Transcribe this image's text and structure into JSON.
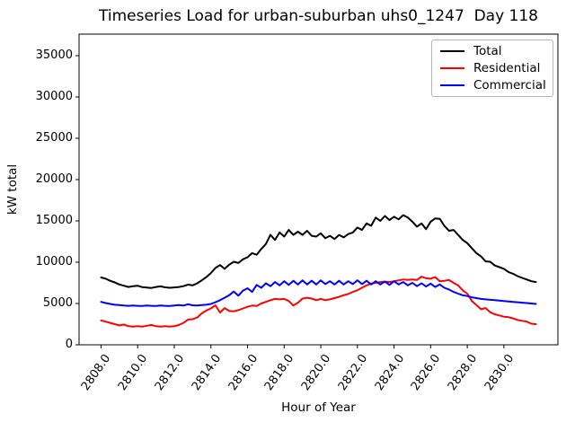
{
  "chart_data": {
    "type": "line",
    "title": "Timeseries Load for urban-suburban uhs0_1247  Day 118",
    "xlabel": "Hour of Year",
    "ylabel": "kW total",
    "grid": false,
    "legend_position": "upper right",
    "xlim": [
      2806.8,
      2832.95
    ],
    "ylim": [
      0,
      37610
    ],
    "xticks": [
      2808,
      2810,
      2812,
      2814,
      2816,
      2818,
      2820,
      2822,
      2824,
      2826,
      2828,
      2830
    ],
    "xtick_labels": [
      "2808.0",
      "2810.0",
      "2812.0",
      "2814.0",
      "2816.0",
      "2818.0",
      "2820.0",
      "2822.0",
      "2824.0",
      "2826.0",
      "2828.0",
      "2830.0"
    ],
    "yticks": [
      0,
      5000,
      10000,
      15000,
      20000,
      25000,
      30000,
      35000
    ],
    "ytick_labels": [
      "0",
      "5000",
      "10000",
      "15000",
      "20000",
      "25000",
      "30000",
      "35000"
    ],
    "x": [
      2808.0,
      2808.25,
      2808.5,
      2808.75,
      2809.0,
      2809.25,
      2809.5,
      2809.75,
      2810.0,
      2810.25,
      2810.5,
      2810.75,
      2811.0,
      2811.25,
      2811.5,
      2811.75,
      2812.0,
      2812.25,
      2812.5,
      2812.75,
      2813.0,
      2813.25,
      2813.5,
      2813.75,
      2814.0,
      2814.25,
      2814.5,
      2814.75,
      2815.0,
      2815.25,
      2815.5,
      2815.75,
      2816.0,
      2816.25,
      2816.5,
      2816.75,
      2817.0,
      2817.25,
      2817.5,
      2817.75,
      2818.0,
      2818.25,
      2818.5,
      2818.75,
      2819.0,
      2819.25,
      2819.5,
      2819.75,
      2820.0,
      2820.25,
      2820.5,
      2820.75,
      2821.0,
      2821.25,
      2821.5,
      2821.75,
      2822.0,
      2822.25,
      2822.5,
      2822.75,
      2823.0,
      2823.25,
      2823.5,
      2823.75,
      2824.0,
      2824.25,
      2824.5,
      2824.75,
      2825.0,
      2825.25,
      2825.5,
      2825.75,
      2826.0,
      2826.25,
      2826.5,
      2826.75,
      2827.0,
      2827.25,
      2827.5,
      2827.75,
      2828.0,
      2828.25,
      2828.5,
      2828.75,
      2829.0,
      2829.25,
      2829.5,
      2829.75,
      2830.0,
      2830.25,
      2830.5,
      2830.75,
      2831.0,
      2831.25,
      2831.5,
      2831.75
    ],
    "series": [
      {
        "name": "Total",
        "color": "#000000",
        "values": [
          8150,
          8000,
          7750,
          7550,
          7300,
          7150,
          7000,
          7100,
          7150,
          6980,
          6930,
          6880,
          7000,
          7080,
          6960,
          6900,
          6950,
          7000,
          7100,
          7280,
          7200,
          7450,
          7800,
          8200,
          8700,
          9300,
          9650,
          9200,
          9700,
          10050,
          9900,
          10350,
          10600,
          11100,
          10900,
          11600,
          12200,
          13300,
          12700,
          13600,
          13100,
          13900,
          13300,
          13700,
          13300,
          13800,
          13200,
          13100,
          13500,
          12900,
          13200,
          12800,
          13300,
          13000,
          13400,
          13600,
          14200,
          13900,
          14700,
          14400,
          15400,
          15000,
          15600,
          15100,
          15500,
          15200,
          15700,
          15400,
          14900,
          14300,
          14700,
          14000,
          14900,
          15300,
          15250,
          14400,
          13800,
          13900,
          13300,
          12700,
          12300,
          11700,
          11100,
          10700,
          10100,
          10050,
          9600,
          9400,
          9200,
          8800,
          8600,
          8300,
          8100,
          7900,
          7700,
          7600
        ]
      },
      {
        "name": "Residential",
        "color": "#ff0000",
        "values": [
          2950,
          2800,
          2650,
          2500,
          2350,
          2450,
          2250,
          2200,
          2250,
          2200,
          2300,
          2400,
          2250,
          2200,
          2250,
          2200,
          2250,
          2400,
          2650,
          3050,
          3100,
          3300,
          3800,
          4150,
          4400,
          4780,
          3900,
          4450,
          4100,
          4050,
          4200,
          4400,
          4600,
          4750,
          4700,
          5000,
          5200,
          5400,
          5550,
          5500,
          5550,
          5300,
          4750,
          5100,
          5600,
          5700,
          5600,
          5400,
          5550,
          5400,
          5500,
          5650,
          5800,
          6000,
          6150,
          6400,
          6600,
          6900,
          7200,
          7400,
          7500,
          7600,
          7650,
          7600,
          7700,
          7800,
          7900,
          7850,
          7900,
          7850,
          8250,
          8050,
          8000,
          8200,
          7700,
          7750,
          7850,
          7500,
          7200,
          6600,
          6200,
          5300,
          4800,
          4300,
          4450,
          3950,
          3700,
          3550,
          3400,
          3350,
          3200,
          3000,
          2900,
          2800,
          2550,
          2500
        ]
      },
      {
        "name": "Commercial",
        "color": "#0000ff",
        "values": [
          5200,
          5050,
          4950,
          4850,
          4800,
          4750,
          4720,
          4750,
          4720,
          4700,
          4750,
          4720,
          4700,
          4750,
          4720,
          4700,
          4750,
          4800,
          4750,
          4900,
          4780,
          4750,
          4800,
          4850,
          4950,
          5150,
          5400,
          5700,
          6000,
          6450,
          5950,
          6550,
          6850,
          6400,
          7250,
          6900,
          7450,
          7100,
          7600,
          7200,
          7700,
          7250,
          7750,
          7300,
          7800,
          7300,
          7750,
          7300,
          7800,
          7350,
          7700,
          7300,
          7750,
          7300,
          7700,
          7350,
          7800,
          7350,
          7750,
          7300,
          7700,
          7300,
          7650,
          7250,
          7700,
          7300,
          7600,
          7200,
          7500,
          7100,
          7450,
          7050,
          7400,
          7000,
          7300,
          6900,
          6700,
          6400,
          6200,
          6000,
          5900,
          5750,
          5650,
          5550,
          5500,
          5450,
          5400,
          5350,
          5300,
          5250,
          5200,
          5150,
          5100,
          5050,
          5000,
          4950
        ]
      }
    ]
  }
}
